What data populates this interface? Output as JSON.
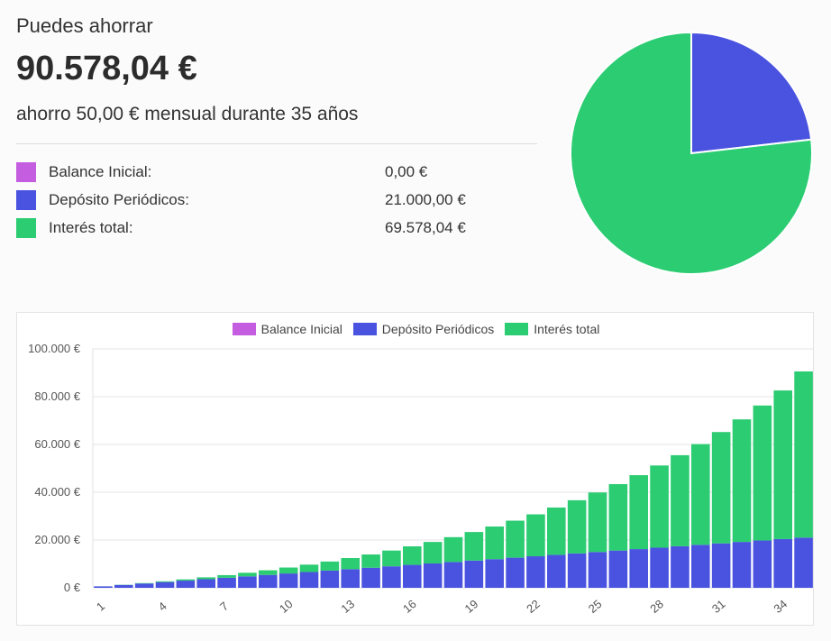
{
  "summary": {
    "eyebrow": "Puedes ahorrar",
    "total": "90.578,04 €",
    "description": "ahorro 50,00 € mensual durante 35 años"
  },
  "breakdown": [
    {
      "label": "Balance Inicial:",
      "value": "0,00 €",
      "color": "#c55de0"
    },
    {
      "label": "Depósito Periódicos:",
      "value": "21.000,00 €",
      "color": "#4a53e0"
    },
    {
      "label": "Interés total:",
      "value": "69.578,04 €",
      "color": "#2bcc72"
    }
  ],
  "pie_chart": {
    "type": "pie",
    "slices": [
      {
        "label": "Balance Inicial",
        "value": 0,
        "color": "#c55de0"
      },
      {
        "label": "Depósito Periódicos",
        "value": 21000,
        "color": "#4a53e0"
      },
      {
        "label": "Interés total",
        "value": 69578.04,
        "color": "#2bcc72"
      }
    ]
  },
  "chart_data": {
    "type": "bar",
    "stacked": true,
    "legend_position": "top-center",
    "grid": true,
    "ylim": [
      0,
      100000
    ],
    "y_ticks": [
      "0 €",
      "20.000 €",
      "40.000 €",
      "60.000 €",
      "80.000 €",
      "100.000 €"
    ],
    "x_tick_labels": [
      "1",
      "4",
      "7",
      "10",
      "13",
      "16",
      "19",
      "22",
      "25",
      "28",
      "31",
      "34"
    ],
    "categories": [
      1,
      2,
      3,
      4,
      5,
      6,
      7,
      8,
      9,
      10,
      11,
      12,
      13,
      14,
      15,
      16,
      17,
      18,
      19,
      20,
      21,
      22,
      23,
      24,
      25,
      26,
      27,
      28,
      29,
      30,
      31,
      32,
      33,
      34,
      35
    ],
    "series": [
      {
        "name": "Balance Inicial",
        "color": "#c55de0",
        "values": [
          0,
          0,
          0,
          0,
          0,
          0,
          0,
          0,
          0,
          0,
          0,
          0,
          0,
          0,
          0,
          0,
          0,
          0,
          0,
          0,
          0,
          0,
          0,
          0,
          0,
          0,
          0,
          0,
          0,
          0,
          0,
          0,
          0,
          0,
          0
        ]
      },
      {
        "name": "Depósito Periódicos",
        "color": "#4a53e0",
        "values": [
          600,
          1200,
          1800,
          2400,
          3000,
          3600,
          4200,
          4800,
          5400,
          6000,
          6600,
          7200,
          7800,
          8400,
          9000,
          9600,
          10200,
          10800,
          11400,
          12000,
          12600,
          13200,
          13800,
          14400,
          15000,
          15600,
          16200,
          16800,
          17400,
          18000,
          18600,
          19200,
          19800,
          20400,
          21000
        ]
      },
      {
        "name": "Interés total",
        "color": "#2bcc72",
        "values": [
          20,
          80,
          180,
          320,
          520,
          780,
          1100,
          1480,
          1940,
          2480,
          3100,
          3800,
          4650,
          5550,
          6600,
          7750,
          9000,
          10400,
          11950,
          13650,
          15500,
          17550,
          19800,
          22250,
          24900,
          27800,
          30950,
          34400,
          38100,
          42150,
          46600,
          51300,
          56500,
          62200,
          69578
        ]
      }
    ]
  }
}
